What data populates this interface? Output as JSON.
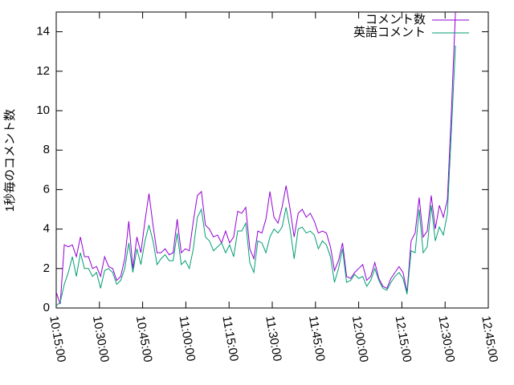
{
  "chart_data": {
    "type": "line",
    "y_label": "1秒毎のコメント数",
    "x": [
      36900,
      36984,
      37068,
      37152,
      37236,
      37320,
      37404,
      37488,
      37572,
      37656,
      37740,
      37824,
      37908,
      37992,
      38076,
      38160,
      38244,
      38328,
      38412,
      38496,
      38580,
      38664,
      38748,
      38832,
      38916,
      39000,
      39084,
      39168,
      39252,
      39336,
      39420,
      39504,
      39588,
      39672,
      39756,
      39840,
      39924,
      40008,
      40092,
      40176,
      40260,
      40344,
      40428,
      40512,
      40596,
      40680,
      40764,
      40848,
      40932,
      41016,
      41100,
      41184,
      41268,
      41352,
      41436,
      41520,
      41604,
      41688,
      41772,
      41856,
      41940,
      42024,
      42108,
      42192,
      42276,
      42360,
      42444,
      42528,
      42612,
      42696,
      42780,
      42864,
      42948,
      43032,
      43116,
      43200,
      43284,
      43368,
      43452,
      43536,
      43620,
      43704,
      43788,
      43872,
      43956,
      44040,
      44124,
      44208,
      44292,
      44376,
      44460,
      44544,
      44628,
      44712,
      44796,
      44880,
      44964,
      45048,
      45132,
      45216
    ],
    "series": [
      {
        "name": "コメント数",
        "color": "#9400d3",
        "values": [
          0.8,
          0.2,
          3.2,
          3.1,
          3.2,
          2.6,
          3.6,
          2.6,
          2.6,
          2.0,
          2.1,
          1.6,
          2.6,
          2.1,
          2.0,
          1.4,
          1.6,
          2.5,
          4.4,
          2.0,
          3.6,
          2.8,
          4.4,
          5.8,
          4.2,
          2.8,
          2.8,
          3.0,
          2.7,
          2.8,
          4.5,
          2.8,
          3.0,
          2.9,
          4.4,
          5.7,
          5.9,
          4.2,
          4.0,
          3.6,
          3.7,
          3.3,
          3.9,
          3.3,
          3.6,
          4.9,
          4.8,
          5.1,
          3.0,
          2.5,
          3.9,
          3.8,
          4.5,
          5.9,
          4.6,
          4.3,
          5.1,
          6.2,
          5.0,
          3.6,
          4.8,
          5.0,
          4.6,
          4.8,
          4.4,
          3.8,
          3.9,
          3.8,
          3.1,
          1.9,
          2.4,
          3.3,
          1.6,
          1.5,
          1.8,
          2.0,
          2.2,
          1.4,
          1.6,
          2.3,
          1.5,
          1.1,
          1.0,
          1.5,
          1.8,
          2.1,
          1.8,
          0.8,
          3.4,
          3.8,
          5.6,
          3.6,
          3.9,
          5.7,
          4.0,
          5.2,
          4.6,
          5.5,
          10.0,
          15
        ]
      },
      {
        "name": "英語コメント",
        "color": "#009e73",
        "values": [
          0.1,
          0.3,
          1.2,
          1.8,
          2.6,
          1.6,
          2.8,
          2.0,
          2.0,
          1.6,
          1.8,
          1.0,
          1.9,
          2.0,
          1.8,
          1.2,
          1.4,
          2.0,
          3.3,
          1.8,
          3.0,
          2.2,
          3.4,
          4.2,
          3.4,
          2.2,
          2.5,
          2.7,
          2.4,
          2.4,
          3.8,
          2.2,
          2.4,
          2.0,
          3.0,
          4.6,
          5.0,
          3.6,
          3.4,
          2.9,
          3.1,
          3.3,
          2.8,
          3.2,
          2.6,
          3.9,
          3.9,
          4.3,
          2.3,
          1.8,
          3.4,
          3.3,
          2.8,
          3.6,
          4.0,
          3.8,
          4.1,
          5.1,
          4.0,
          2.5,
          4.0,
          4.1,
          3.8,
          3.9,
          3.7,
          3.0,
          3.4,
          3.2,
          2.6,
          1.3,
          2.0,
          3.0,
          1.3,
          1.4,
          1.7,
          1.5,
          1.6,
          1.1,
          1.4,
          2.0,
          1.4,
          1.0,
          0.9,
          1.3,
          1.6,
          1.8,
          1.5,
          0.7,
          2.9,
          2.8,
          5.0,
          2.8,
          3.1,
          5.2,
          3.4,
          4.1,
          3.7,
          4.8,
          9.0,
          13.3
        ]
      }
    ],
    "xlim": [
      36900,
      45900
    ],
    "xticks": [
      {
        "value": 36900,
        "label": "10:15:00"
      },
      {
        "value": 37800,
        "label": "10:30:00"
      },
      {
        "value": 38700,
        "label": "10:45:00"
      },
      {
        "value": 39600,
        "label": "11:00:00"
      },
      {
        "value": 40500,
        "label": "11:15:00"
      },
      {
        "value": 41400,
        "label": "11:30:00"
      },
      {
        "value": 42300,
        "label": "11:45:00"
      },
      {
        "value": 43200,
        "label": "12:00:00"
      },
      {
        "value": 44100,
        "label": "12:15:00"
      },
      {
        "value": 45000,
        "label": "12:30:00"
      },
      {
        "value": 45900,
        "label": "12:45:00"
      }
    ],
    "ylim": [
      0,
      15
    ],
    "yticks": [
      0,
      2,
      4,
      6,
      8,
      10,
      12,
      14
    ],
    "legend": "top-right",
    "grid": false
  }
}
